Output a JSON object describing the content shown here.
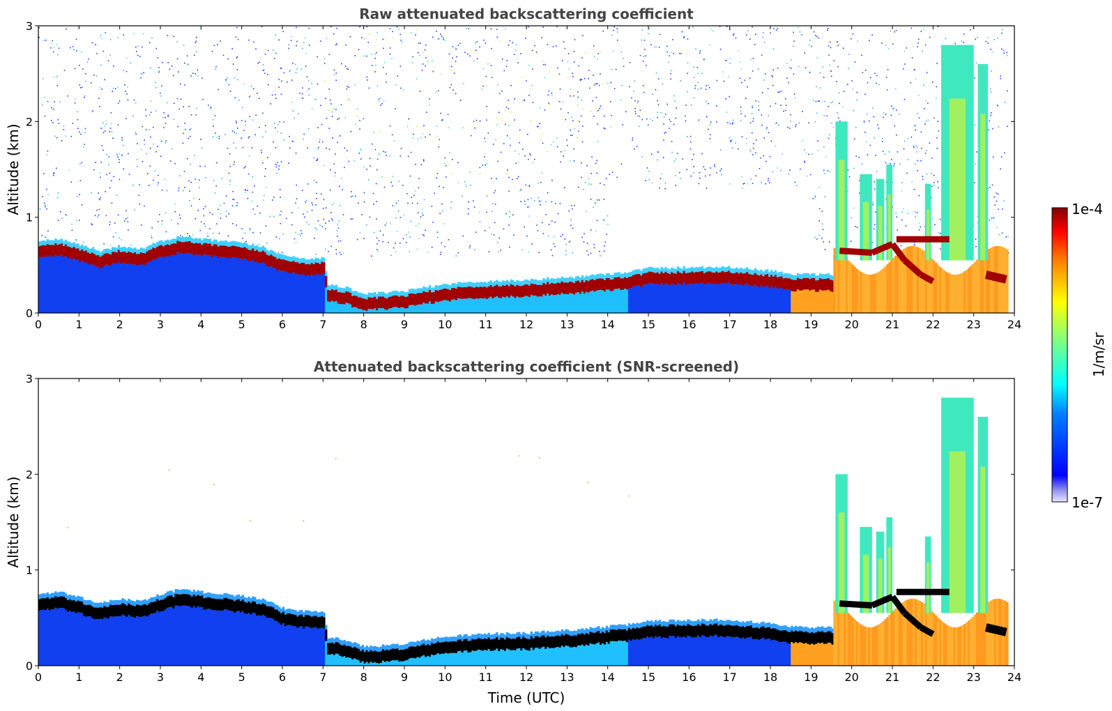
{
  "chart_data": [
    {
      "type": "heatmap",
      "title": "Raw attenuated backscattering coefficient",
      "xlabel": "",
      "ylabel": "Altitude (km)",
      "xlim": [
        0,
        24
      ],
      "ylim": [
        0,
        3
      ],
      "x_ticks": [
        "0",
        "1",
        "2",
        "3",
        "4",
        "5",
        "6",
        "7",
        "8",
        "9",
        "10",
        "11",
        "12",
        "13",
        "14",
        "15",
        "16",
        "17",
        "18",
        "19",
        "20",
        "21",
        "22",
        "23",
        "24"
      ],
      "y_ticks": [
        "0",
        "1",
        "2",
        "3"
      ],
      "screened": false,
      "data_coverage_end_hour": 23.85,
      "top_layer_altitude_km": [
        [
          0,
          0.7
        ],
        [
          0.5,
          0.72
        ],
        [
          1,
          0.66
        ],
        [
          1.5,
          0.6
        ],
        [
          2,
          0.65
        ],
        [
          2.5,
          0.62
        ],
        [
          3,
          0.7
        ],
        [
          3.5,
          0.75
        ],
        [
          4,
          0.72
        ],
        [
          4.5,
          0.7
        ],
        [
          5,
          0.68
        ],
        [
          5.5,
          0.64
        ],
        [
          6,
          0.55
        ],
        [
          6.5,
          0.52
        ],
        [
          7,
          0.52
        ],
        [
          7.1,
          0.25
        ],
        [
          7.5,
          0.22
        ],
        [
          8,
          0.15
        ],
        [
          8.5,
          0.16
        ],
        [
          9,
          0.18
        ],
        [
          9.5,
          0.22
        ],
        [
          10,
          0.25
        ],
        [
          10.5,
          0.27
        ],
        [
          11,
          0.28
        ],
        [
          11.5,
          0.29
        ],
        [
          12,
          0.29
        ],
        [
          12.5,
          0.31
        ],
        [
          13,
          0.32
        ],
        [
          13.5,
          0.34
        ],
        [
          14,
          0.36
        ],
        [
          14.5,
          0.38
        ],
        [
          15,
          0.42
        ],
        [
          15.5,
          0.42
        ],
        [
          16,
          0.43
        ],
        [
          16.5,
          0.43
        ],
        [
          17,
          0.43
        ],
        [
          17.5,
          0.41
        ],
        [
          18,
          0.39
        ],
        [
          18.5,
          0.36
        ],
        [
          19,
          0.35
        ],
        [
          19.5,
          0.35
        ]
      ],
      "layer_thickness_km": 0.12,
      "vertical_plumes": [
        {
          "x_start": 19.6,
          "x_end": 19.9,
          "top_km": 2.0
        },
        {
          "x_start": 20.2,
          "x_end": 20.5,
          "top_km": 1.45
        },
        {
          "x_start": 20.6,
          "x_end": 20.8,
          "top_km": 1.4
        },
        {
          "x_start": 20.85,
          "x_end": 21.0,
          "top_km": 1.55
        },
        {
          "x_start": 21.8,
          "x_end": 21.95,
          "top_km": 1.35
        },
        {
          "x_start": 22.2,
          "x_end": 23.0,
          "top_km": 2.8
        },
        {
          "x_start": 23.1,
          "x_end": 23.35,
          "top_km": 2.6
        }
      ],
      "color_scale": {
        "type": "log",
        "min_label": "1e-7",
        "max_label": "1e-4",
        "units": "1/m/sr",
        "colormap": "jet"
      }
    },
    {
      "type": "heatmap",
      "title": "Attenuated backscattering coefficient (SNR-screened)",
      "xlabel": "Time (UTC)",
      "ylabel": "Altitude (km)",
      "xlim": [
        0,
        24
      ],
      "ylim": [
        0,
        3
      ],
      "x_ticks": [
        "0",
        "1",
        "2",
        "3",
        "4",
        "5",
        "6",
        "7",
        "8",
        "9",
        "10",
        "11",
        "12",
        "13",
        "14",
        "15",
        "16",
        "17",
        "18",
        "19",
        "20",
        "21",
        "22",
        "23",
        "24"
      ],
      "y_ticks": [
        "0",
        "1",
        "2",
        "3"
      ],
      "screened": true,
      "data_coverage_end_hour": 23.85,
      "saturated_color": "#000000"
    }
  ],
  "colorbar": {
    "max_label": "1e-4",
    "min_label": "1e-7",
    "units": "1/m/sr",
    "colormap": [
      "#00007f",
      "#0000ff",
      "#007fff",
      "#00ffff",
      "#7fff7f",
      "#ffff00",
      "#ff7f00",
      "#ff0000",
      "#7f0000"
    ]
  }
}
